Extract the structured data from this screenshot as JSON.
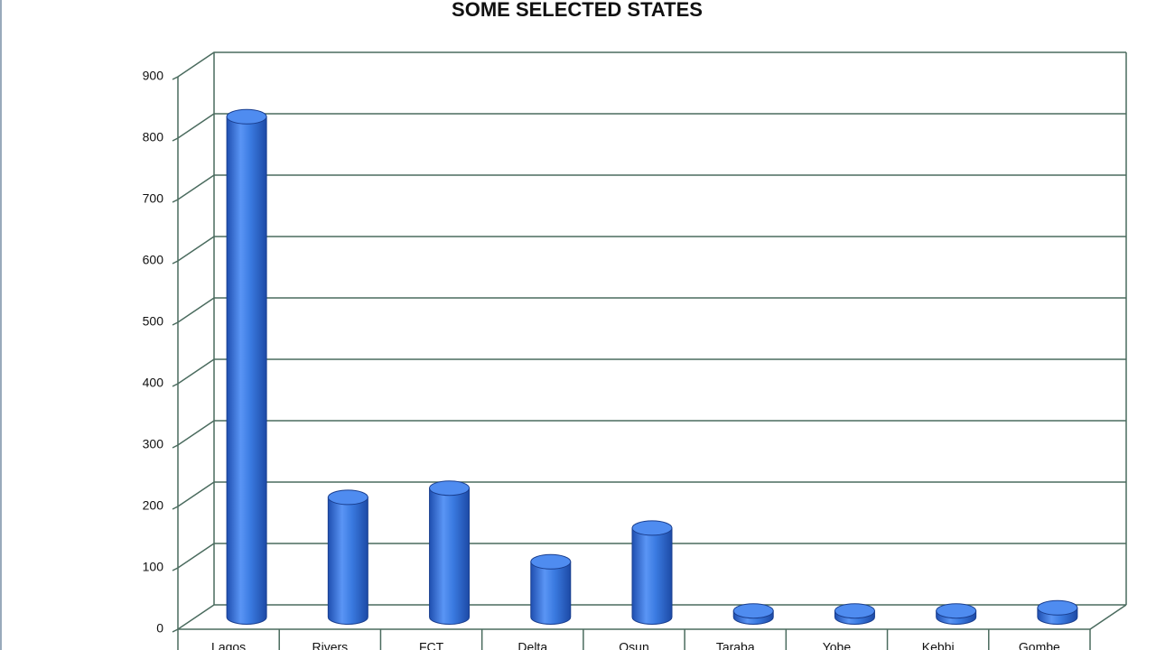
{
  "chart_data": {
    "type": "bar3d",
    "title": "SOME SELECTED STATES",
    "categories": [
      "Lagos",
      "Rivers",
      "FCT",
      "Delta",
      "Osun",
      "Taraba",
      "Yobe",
      "Kebbi",
      "Gombe"
    ],
    "values": [
      815,
      195,
      210,
      90,
      145,
      10,
      10,
      10,
      15
    ],
    "color": "#3a7ae0",
    "ylim": [
      0,
      900
    ],
    "yticks": [
      0,
      100,
      200,
      300,
      400,
      500,
      600,
      700,
      800,
      900
    ],
    "grid": true
  }
}
